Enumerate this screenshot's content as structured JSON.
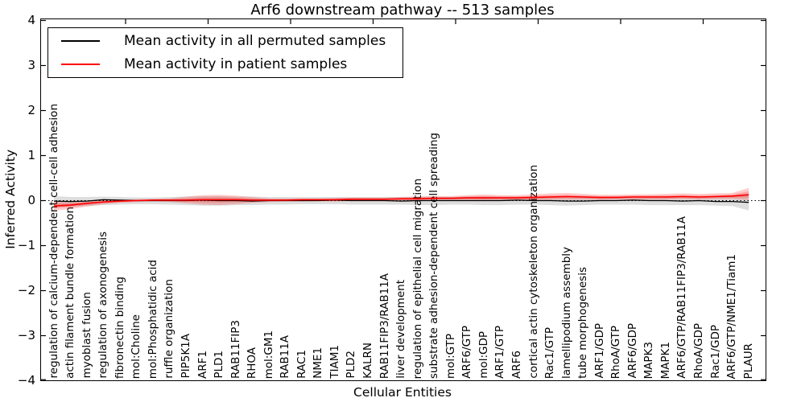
{
  "chart_data": {
    "type": "line",
    "title": "Arf6 downstream pathway -- 513 samples",
    "xlabel": "Cellular Entities",
    "ylabel": "Inferred Activity",
    "ylim": [
      -4,
      4
    ],
    "grid": false,
    "zero_line": "dotted",
    "legend_position": "upper left",
    "yticks": {
      "values": [
        4,
        3,
        2,
        1,
        0,
        -1,
        -2,
        -3,
        -4
      ],
      "labels": [
        "4",
        "3",
        "2",
        "1",
        "0",
        "−1",
        "−2",
        "−3",
        "−4"
      ]
    },
    "categories": [
      "regulation of calcium-dependent cell-cell adhesion",
      "actin filament bundle formation",
      "myoblast fusion",
      "regulation of axonogenesis",
      "fibronectin binding",
      "mol:Choline",
      "mol:Phosphatidic acid",
      "ruffle organization",
      "PIP5K1A",
      "ARF1",
      "PLD1",
      "RAB11FIP3",
      "RHOA",
      "mol:GM1",
      "RAB11A",
      "RAC1",
      "NME1",
      "TIAM1",
      "PLD2",
      "KALRN",
      "RAB11FIP3/RAB11A",
      "liver development",
      "regulation of epithelial cell migration",
      "substrate adhesion-dependent cell spreading",
      "mol:GTP",
      "ARF6/GTP",
      "mol:GDP",
      "ARF1/GTP",
      "ARF6",
      "cortical actin cytoskeleton organization",
      "Rac1/GTP",
      "lamellipodium assembly",
      "tube morphogenesis",
      "ARF1/GDP",
      "RhoA/GTP",
      "ARF6/GDP",
      "MAPK3",
      "MAPK1",
      "ARF6/GTP/RAB11FIP3/RAB11A",
      "RhoA/GDP",
      "Rac1/GDP",
      "ARF6/GTP/NME1/Tiam1",
      "PLAUR"
    ],
    "series": [
      {
        "name": "Mean activity in all permuted samples",
        "color": "#000000",
        "band_color": "rgba(0,0,0,0.13)",
        "values": [
          -0.01,
          -0.02,
          -0.01,
          0.02,
          0.01,
          0.0,
          0.0,
          0.0,
          0.0,
          0.01,
          0.0,
          0.0,
          -0.01,
          0.0,
          0.0,
          0.0,
          0.0,
          0.01,
          0.0,
          0.0,
          0.0,
          -0.01,
          0.0,
          0.0,
          0.0,
          0.0,
          0.0,
          0.0,
          0.01,
          0.0,
          0.0,
          -0.01,
          -0.01,
          0.0,
          0.0,
          0.01,
          0.0,
          0.0,
          -0.01,
          0.0,
          -0.02,
          -0.02,
          -0.04
        ],
        "band_lo": [
          -0.13,
          -0.14,
          -0.12,
          -0.1,
          -0.09,
          -0.08,
          -0.08,
          -0.09,
          -0.1,
          -0.11,
          -0.11,
          -0.1,
          -0.1,
          -0.09,
          -0.09,
          -0.08,
          -0.08,
          -0.08,
          -0.09,
          -0.09,
          -0.09,
          -0.09,
          -0.1,
          -0.1,
          -0.09,
          -0.09,
          -0.1,
          -0.1,
          -0.09,
          -0.09,
          -0.1,
          -0.11,
          -0.1,
          -0.09,
          -0.09,
          -0.09,
          -0.1,
          -0.1,
          -0.1,
          -0.1,
          -0.11,
          -0.12,
          -0.22
        ],
        "band_hi": [
          0.1,
          0.08,
          0.08,
          0.09,
          0.08,
          0.07,
          0.07,
          0.08,
          0.09,
          0.1,
          0.1,
          0.09,
          0.09,
          0.08,
          0.08,
          0.08,
          0.08,
          0.08,
          0.08,
          0.08,
          0.08,
          0.08,
          0.09,
          0.09,
          0.08,
          0.09,
          0.09,
          0.09,
          0.09,
          0.09,
          0.09,
          0.1,
          0.09,
          0.09,
          0.09,
          0.09,
          0.09,
          0.09,
          0.1,
          0.09,
          0.1,
          0.1,
          0.12
        ]
      },
      {
        "name": "Mean activity in patient samples",
        "color": "#ff0000",
        "band_color": "rgba(255,0,0,0.20)",
        "double_band": true,
        "values": [
          -0.12,
          -0.1,
          -0.06,
          -0.03,
          -0.01,
          0.0,
          0.01,
          0.01,
          0.01,
          0.02,
          0.02,
          0.02,
          0.01,
          0.01,
          0.01,
          0.02,
          0.02,
          0.02,
          0.03,
          0.03,
          0.03,
          0.04,
          0.04,
          0.05,
          0.05,
          0.06,
          0.06,
          0.06,
          0.06,
          0.07,
          0.08,
          0.09,
          0.08,
          0.07,
          0.07,
          0.08,
          0.08,
          0.08,
          0.09,
          0.08,
          0.09,
          0.1,
          0.13
        ],
        "band_lo": [
          -0.22,
          -0.19,
          -0.13,
          -0.08,
          -0.05,
          -0.03,
          -0.02,
          -0.03,
          -0.06,
          -0.09,
          -0.1,
          -0.08,
          -0.05,
          -0.03,
          -0.02,
          -0.02,
          -0.01,
          -0.02,
          -0.01,
          0.0,
          -0.01,
          0.0,
          0.0,
          0.01,
          0.01,
          0.0,
          -0.01,
          0.0,
          0.0,
          0.01,
          0.01,
          0.02,
          0.02,
          0.01,
          0.02,
          0.02,
          0.02,
          0.02,
          0.03,
          0.02,
          0.03,
          0.03,
          0.01
        ],
        "band_hi": [
          -0.02,
          -0.02,
          -0.01,
          0.01,
          0.02,
          0.03,
          0.04,
          0.05,
          0.09,
          0.12,
          0.13,
          0.11,
          0.08,
          0.05,
          0.05,
          0.05,
          0.05,
          0.06,
          0.07,
          0.07,
          0.07,
          0.08,
          0.09,
          0.1,
          0.1,
          0.12,
          0.14,
          0.12,
          0.12,
          0.14,
          0.16,
          0.17,
          0.15,
          0.13,
          0.13,
          0.14,
          0.14,
          0.15,
          0.16,
          0.15,
          0.16,
          0.17,
          0.28
        ]
      }
    ]
  },
  "legend": {
    "items": [
      {
        "label": "Mean activity in all permuted samples",
        "color": "#000000"
      },
      {
        "label": "Mean activity in patient samples",
        "color": "#ff0000"
      }
    ]
  }
}
